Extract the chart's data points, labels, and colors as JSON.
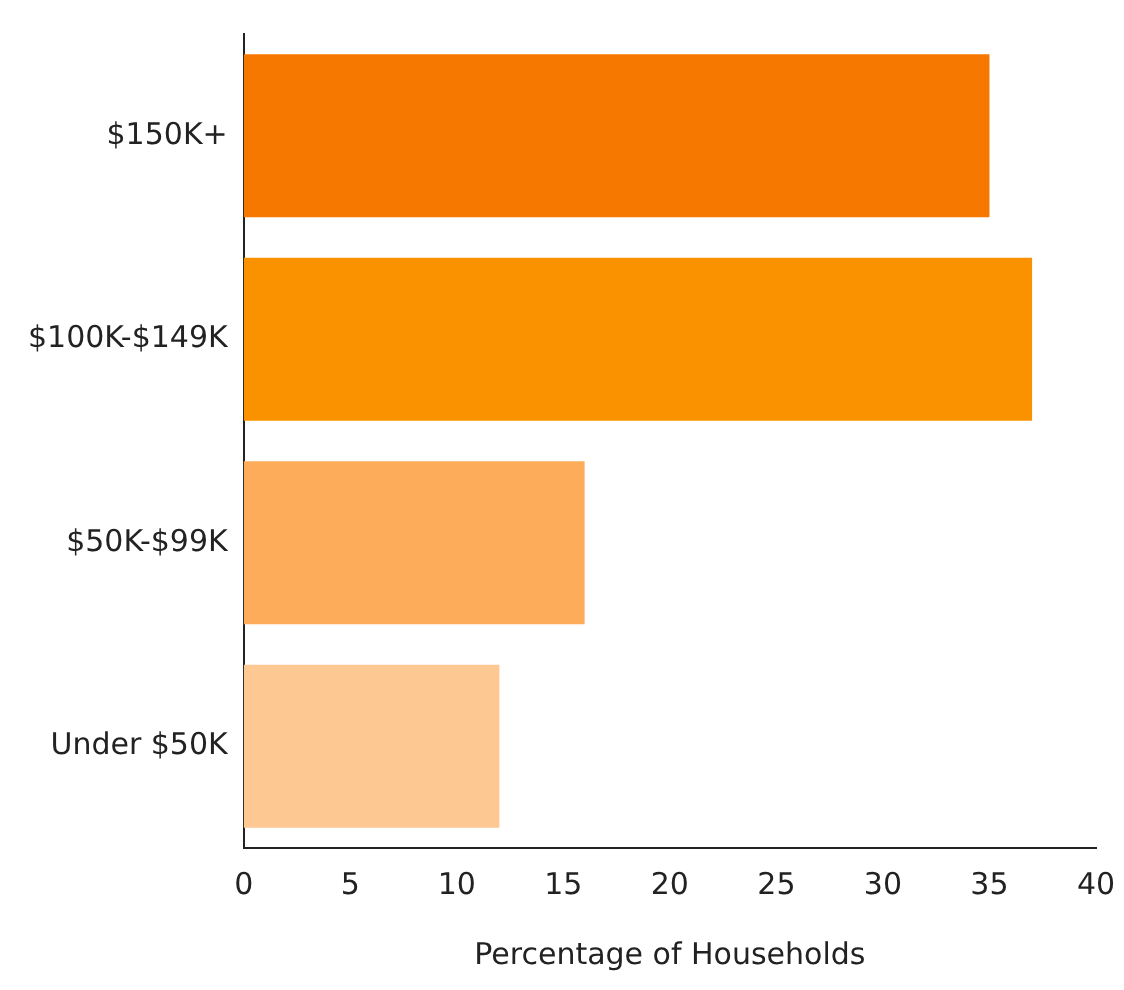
{
  "chart_data": {
    "type": "bar",
    "orientation": "horizontal",
    "xlabel": "Percentage of Households",
    "categories": [
      "$150K+",
      "$100K-$149K",
      "$50K-$99K",
      "Under $50K"
    ],
    "values": [
      35,
      37,
      16,
      12
    ],
    "colors": [
      "#f77800",
      "#fa9200",
      "#fdad5a",
      "#fec893"
    ],
    "xlim": [
      0,
      40
    ],
    "xticks": [
      0,
      5,
      10,
      15,
      20,
      25,
      30,
      35,
      40
    ],
    "grid": false,
    "legend": false
  }
}
